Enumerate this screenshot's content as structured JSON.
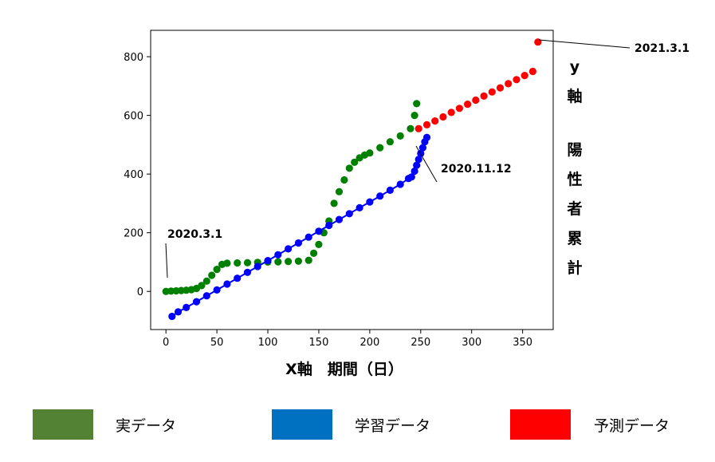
{
  "chart_data": {
    "type": "scatter",
    "xlabel": "X軸　期間（日）",
    "ylabel_chars": [
      "y",
      "軸",
      "陽",
      "性",
      "者",
      "累",
      "計"
    ],
    "xlim": [
      -15,
      380
    ],
    "ylim": [
      -130,
      890
    ],
    "xticks": [
      0,
      50,
      100,
      150,
      200,
      250,
      300,
      350
    ],
    "yticks": [
      0,
      200,
      400,
      600,
      800
    ],
    "annotations": [
      {
        "text": "2020.3.1",
        "x": 0,
        "y": 0
      },
      {
        "text": "2020.11.12",
        "x": 245,
        "y": 520
      },
      {
        "text": "2021.3.1",
        "x": 365,
        "y": 850
      }
    ],
    "series": [
      {
        "key": "actual",
        "color": "#008000",
        "marker": "circle",
        "points": [
          [
            0,
            0
          ],
          [
            5,
            1
          ],
          [
            10,
            2
          ],
          [
            15,
            3
          ],
          [
            20,
            4
          ],
          [
            25,
            6
          ],
          [
            30,
            10
          ],
          [
            35,
            20
          ],
          [
            40,
            35
          ],
          [
            45,
            55
          ],
          [
            50,
            75
          ],
          [
            55,
            92
          ],
          [
            60,
            96
          ],
          [
            70,
            97
          ],
          [
            80,
            98
          ],
          [
            90,
            99
          ],
          [
            100,
            100
          ],
          [
            110,
            101
          ],
          [
            120,
            102
          ],
          [
            130,
            103
          ],
          [
            140,
            106
          ],
          [
            145,
            130
          ],
          [
            150,
            160
          ],
          [
            155,
            200
          ],
          [
            160,
            240
          ],
          [
            165,
            300
          ],
          [
            170,
            340
          ],
          [
            175,
            380
          ],
          [
            180,
            420
          ],
          [
            185,
            440
          ],
          [
            190,
            455
          ],
          [
            195,
            465
          ],
          [
            200,
            472
          ],
          [
            210,
            490
          ],
          [
            220,
            510
          ],
          [
            230,
            530
          ],
          [
            240,
            555
          ],
          [
            244,
            600
          ],
          [
            246,
            640
          ]
        ]
      },
      {
        "key": "training",
        "color": "#0000ff",
        "marker": "circle",
        "line": true,
        "points": [
          [
            6,
            -85
          ],
          [
            12,
            -70
          ],
          [
            20,
            -55
          ],
          [
            30,
            -35
          ],
          [
            40,
            -15
          ],
          [
            50,
            5
          ],
          [
            60,
            25
          ],
          [
            70,
            45
          ],
          [
            80,
            65
          ],
          [
            90,
            85
          ],
          [
            100,
            105
          ],
          [
            110,
            125
          ],
          [
            120,
            145
          ],
          [
            130,
            165
          ],
          [
            140,
            185
          ],
          [
            150,
            205
          ],
          [
            160,
            225
          ],
          [
            170,
            245
          ],
          [
            180,
            265
          ],
          [
            190,
            285
          ],
          [
            200,
            305
          ],
          [
            210,
            325
          ],
          [
            220,
            345
          ],
          [
            230,
            365
          ],
          [
            238,
            385
          ],
          [
            241,
            390
          ],
          [
            244,
            410
          ],
          [
            246,
            430
          ],
          [
            248,
            450
          ],
          [
            250,
            470
          ],
          [
            252,
            490
          ],
          [
            254,
            510
          ],
          [
            256,
            525
          ]
        ]
      },
      {
        "key": "forecast",
        "color": "#ff0000",
        "marker": "circle",
        "points": [
          [
            248,
            555
          ],
          [
            256,
            568
          ],
          [
            264,
            581
          ],
          [
            272,
            595
          ],
          [
            280,
            610
          ],
          [
            288,
            624
          ],
          [
            296,
            638
          ],
          [
            304,
            652
          ],
          [
            312,
            666
          ],
          [
            320,
            680
          ],
          [
            328,
            694
          ],
          [
            336,
            708
          ],
          [
            344,
            722
          ],
          [
            352,
            736
          ],
          [
            360,
            750
          ],
          [
            365,
            850
          ]
        ]
      }
    ]
  },
  "legend": [
    {
      "label": "実データ",
      "color": "#548235"
    },
    {
      "label": "学習データ",
      "color": "#0070c0"
    },
    {
      "label": "予測データ",
      "color": "#ff0000"
    }
  ]
}
